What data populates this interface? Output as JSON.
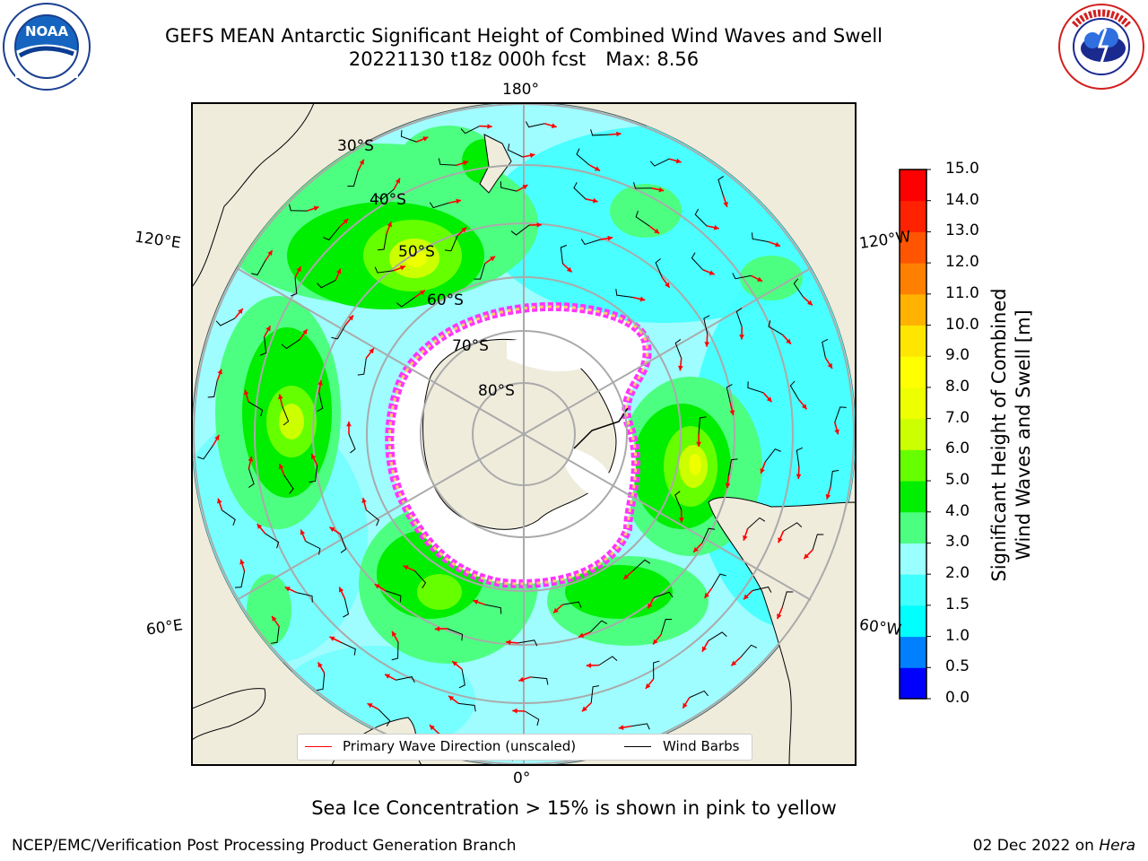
{
  "title": {
    "line1": "GEFS MEAN Antarctic Significant Height of Combined Wind Waves and Swell",
    "line2_run": "20221130 t18z 000h fcst",
    "line2_max": "Max: 8.56"
  },
  "logos": {
    "left": {
      "text": "NOAA",
      "ring_text": "NATIONAL OCEANIC AND ATMOSPHERIC ADMINISTRATION · U.S. DEPARTMENT OF COMMERCE"
    },
    "right": {
      "ring_text": "NATIONAL WEATHER SERVICE"
    }
  },
  "map": {
    "projection": "south-polar-stereographic",
    "longitude_labels": {
      "top": "180°",
      "bottom": "0°",
      "upper_left": "120°E",
      "upper_right": "120°W",
      "lower_left": "60°E",
      "lower_right": "60°W"
    },
    "latitude_labels": [
      "30°S",
      "40°S",
      "50°S",
      "60°S",
      "70°S",
      "80°S"
    ],
    "land_color": "#efecdc",
    "ice_colors": [
      "#ff33ff",
      "#ff99cc",
      "#ffcc66"
    ]
  },
  "legend": {
    "wave": {
      "label": "Primary Wave Direction (unscaled)",
      "color": "#ff0000"
    },
    "wind": {
      "label": "Wind Barbs",
      "color": "#000000"
    }
  },
  "colorbar": {
    "title_line1": "Significant Height of Combined",
    "title_line2": "Wind Waves and Swell [m]",
    "ticks": [
      "0.0",
      "0.5",
      "1.0",
      "1.5",
      "2.0",
      "3.0",
      "4.0",
      "5.0",
      "6.0",
      "7.0",
      "8.0",
      "9.0",
      "10.0",
      "11.0",
      "12.0",
      "13.0",
      "14.0",
      "15.0"
    ],
    "colors": [
      "#0000ff",
      "#0080ff",
      "#00ffff",
      "#40ffff",
      "#99ffff",
      "#4dff80",
      "#00ee00",
      "#66ff00",
      "#ccff00",
      "#eeff00",
      "#ffff00",
      "#ffe600",
      "#ffb300",
      "#ff8000",
      "#ff5500",
      "#ff2200",
      "#ff0000"
    ]
  },
  "footer": {
    "note": "Sea Ice Concentration > 15% is shown in pink to yellow",
    "credit": "NCEP/EMC/Verification Post Processing Product Generation Branch",
    "date": "02 Dec 2022 on",
    "machine": "Hera"
  }
}
